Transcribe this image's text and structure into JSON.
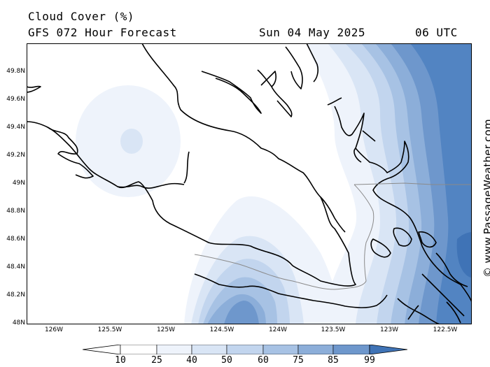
{
  "header": {
    "title": "Cloud Cover (%)",
    "subtitle": "GFS 072 Hour Forecast",
    "date": "Sun 04 May 2025",
    "time": "06 UTC"
  },
  "axes": {
    "lat_labels": [
      "49.8N",
      "49.6N",
      "49.4N",
      "49.2N",
      "49N",
      "48.8N",
      "48.6N",
      "48.4N",
      "48.2N",
      "48N"
    ],
    "lon_labels": [
      "126W",
      "125.5W",
      "125W",
      "124.5W",
      "124W",
      "123.5W",
      "123W",
      "122.5W"
    ]
  },
  "watermark": "© www.PassageWeather.com",
  "legend": {
    "levels": [
      "10",
      "25",
      "40",
      "50",
      "60",
      "75",
      "85",
      "99"
    ],
    "colors": [
      "#ffffff",
      "#eef3fb",
      "#d9e5f5",
      "#c2d5ee",
      "#a7c2e4",
      "#8caed9",
      "#6e97cc",
      "#5284c2",
      "#3f73b6"
    ]
  }
}
